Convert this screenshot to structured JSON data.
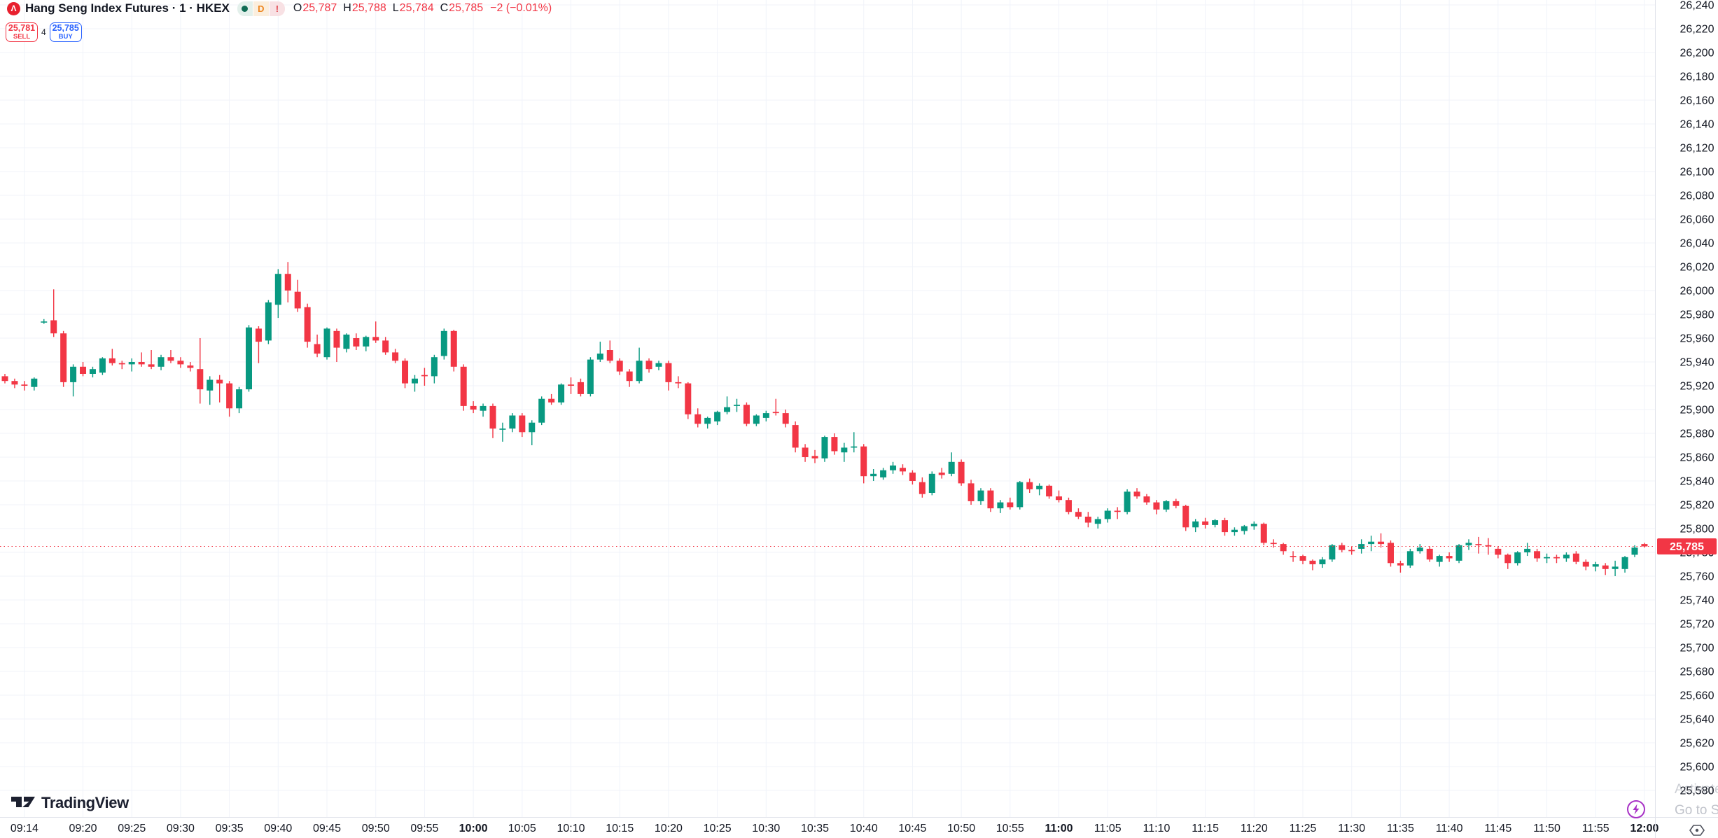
{
  "header": {
    "logo_glyph": "Λ",
    "symbol_title": "Hang Seng Index Futures · 1 · HKEX",
    "chips": {
      "d_label": "D",
      "alert_label": "!"
    },
    "ohlc": {
      "o_label": "O",
      "o": "25,787",
      "h_label": "H",
      "h": "25,788",
      "l_label": "L",
      "l": "25,784",
      "c_label": "C",
      "c": "25,785",
      "change": "−2 (−0.01%)"
    }
  },
  "order_panel": {
    "sell_price": "25,781",
    "sell_label": "SELL",
    "spread": "4",
    "buy_price": "25,785",
    "buy_label": "BUY"
  },
  "branding": {
    "logo_text": "TradingView"
  },
  "watermark": {
    "line1": "Activate W",
    "line2": "Go to S"
  },
  "colors": {
    "up": "#089981",
    "down": "#F23645",
    "buy_blue": "#2962FF",
    "sell_red": "#F23645",
    "grid": "#F0F3FA",
    "axis_text": "#131722",
    "axis_border": "#E0E3EB",
    "logo_red": "#E8202E",
    "chip_dot_green": "#0F6C54",
    "chip_d_orange": "#EE8722",
    "chip_alert_red": "#E0454F",
    "lightning_purple": "#A832C6",
    "icon_gray": "#50535E"
  },
  "price_axis": {
    "labels": [
      "26,240",
      "26,220",
      "26,200",
      "26,180",
      "26,160",
      "26,140",
      "26,120",
      "26,100",
      "26,080",
      "26,060",
      "26,040",
      "26,020",
      "26,000",
      "25,980",
      "25,960",
      "25,940",
      "25,920",
      "25,900",
      "25,880",
      "25,860",
      "25,840",
      "25,820",
      "25,800",
      "25,780",
      "25,760",
      "25,740",
      "25,720",
      "25,700",
      "25,680",
      "25,660",
      "25,640",
      "25,620",
      "25,600",
      "25,580"
    ],
    "last_price_label": "25,785"
  },
  "time_axis": {
    "labels": [
      {
        "t": "09:14",
        "bold": false
      },
      {
        "t": "09:20",
        "bold": false
      },
      {
        "t": "09:25",
        "bold": false
      },
      {
        "t": "09:30",
        "bold": false
      },
      {
        "t": "09:35",
        "bold": false
      },
      {
        "t": "09:40",
        "bold": false
      },
      {
        "t": "09:45",
        "bold": false
      },
      {
        "t": "09:50",
        "bold": false
      },
      {
        "t": "09:55",
        "bold": false
      },
      {
        "t": "10:00",
        "bold": true
      },
      {
        "t": "10:05",
        "bold": false
      },
      {
        "t": "10:10",
        "bold": false
      },
      {
        "t": "10:15",
        "bold": false
      },
      {
        "t": "10:20",
        "bold": false
      },
      {
        "t": "10:25",
        "bold": false
      },
      {
        "t": "10:30",
        "bold": false
      },
      {
        "t": "10:35",
        "bold": false
      },
      {
        "t": "10:40",
        "bold": false
      },
      {
        "t": "10:45",
        "bold": false
      },
      {
        "t": "10:50",
        "bold": false
      },
      {
        "t": "10:55",
        "bold": false
      },
      {
        "t": "11:00",
        "bold": true
      },
      {
        "t": "11:05",
        "bold": false
      },
      {
        "t": "11:10",
        "bold": false
      },
      {
        "t": "11:15",
        "bold": false
      },
      {
        "t": "11:20",
        "bold": false
      },
      {
        "t": "11:25",
        "bold": false
      },
      {
        "t": "11:30",
        "bold": false
      },
      {
        "t": "11:35",
        "bold": false
      },
      {
        "t": "11:40",
        "bold": false
      },
      {
        "t": "11:45",
        "bold": false
      },
      {
        "t": "11:50",
        "bold": false
      },
      {
        "t": "11:55",
        "bold": false
      },
      {
        "t": "12:00",
        "bold": true
      }
    ]
  },
  "chart_data": {
    "type": "candlestick",
    "title": "Hang Seng Index Futures, 1-minute, HKEX",
    "interval_minutes": 1,
    "first_candle_time": "09:12",
    "ylim": [
      25580,
      26240
    ],
    "price_line": 25785,
    "legend_position": "none",
    "grid": true,
    "candles": [
      [
        25928,
        25930,
        25922,
        25924
      ],
      [
        25924,
        25926,
        25918,
        25921
      ],
      [
        25921,
        25924,
        25916,
        25920
      ],
      [
        25919,
        25927,
        25916,
        25926
      ],
      [
        25974,
        25976,
        25972,
        25974
      ],
      [
        25975,
        26001,
        25961,
        25964
      ],
      [
        25964,
        25966,
        25919,
        25923
      ],
      [
        25923,
        25938,
        25911,
        25936
      ],
      [
        25936,
        25940,
        25928,
        25930
      ],
      [
        25930,
        25936,
        25927,
        25934
      ],
      [
        25931,
        25944,
        25929,
        25943
      ],
      [
        25943,
        25951,
        25937,
        25939
      ],
      [
        25939,
        25941,
        25934,
        25938
      ],
      [
        25938,
        25943,
        25932,
        25940
      ],
      [
        25940,
        25948,
        25936,
        25938
      ],
      [
        25938,
        25950,
        25934,
        25936
      ],
      [
        25936,
        25946,
        25933,
        25944
      ],
      [
        25944,
        25950,
        25939,
        25941
      ],
      [
        25941,
        25944,
        25935,
        25938
      ],
      [
        25937,
        25940,
        25932,
        25935
      ],
      [
        25934,
        25960,
        25905,
        25917
      ],
      [
        25916,
        25928,
        25904,
        25925
      ],
      [
        25925,
        25929,
        25906,
        25922
      ],
      [
        25922,
        25924,
        25894,
        25901
      ],
      [
        25901,
        25919,
        25897,
        25917
      ],
      [
        25917,
        25971,
        25915,
        25969
      ],
      [
        25968,
        25970,
        25939,
        25957
      ],
      [
        25958,
        25992,
        25955,
        25990
      ],
      [
        25988,
        26018,
        25977,
        26014
      ],
      [
        26014,
        26024,
        25990,
        26000
      ],
      [
        25999,
        26009,
        25982,
        25985
      ],
      [
        25986,
        25989,
        25952,
        25957
      ],
      [
        25955,
        25963,
        25944,
        25947
      ],
      [
        25944,
        25969,
        25942,
        25968
      ],
      [
        25966,
        25968,
        25940,
        25952
      ],
      [
        25951,
        25964,
        25948,
        25963
      ],
      [
        25960,
        25964,
        25950,
        25953
      ],
      [
        25953,
        25962,
        25949,
        25961
      ],
      [
        25961,
        25974,
        25956,
        25958
      ],
      [
        25958,
        25961,
        25946,
        25948
      ],
      [
        25948,
        25951,
        25939,
        25941
      ],
      [
        25941,
        25943,
        25918,
        25922
      ],
      [
        25922,
        25929,
        25915,
        25926
      ],
      [
        25929,
        25935,
        25920,
        25928
      ],
      [
        25928,
        25946,
        25922,
        25944
      ],
      [
        25945,
        25968,
        25942,
        25966
      ],
      [
        25966,
        25967,
        25932,
        25936
      ],
      [
        25936,
        25938,
        25899,
        25903
      ],
      [
        25903,
        25907,
        25897,
        25900
      ],
      [
        25899,
        25905,
        25894,
        25903
      ],
      [
        25903,
        25905,
        25876,
        25884
      ],
      [
        25884,
        25889,
        25873,
        25884
      ],
      [
        25884,
        25897,
        25881,
        25895
      ],
      [
        25895,
        25897,
        25877,
        25881
      ],
      [
        25881,
        25891,
        25870,
        25889
      ],
      [
        25889,
        25911,
        25887,
        25909
      ],
      [
        25909,
        25913,
        25904,
        25906
      ],
      [
        25906,
        25922,
        25904,
        25921
      ],
      [
        25921,
        25927,
        25913,
        25920
      ],
      [
        25923,
        25926,
        25911,
        25913
      ],
      [
        25913,
        25944,
        25911,
        25942
      ],
      [
        25942,
        25957,
        25940,
        25947
      ],
      [
        25950,
        25958,
        25939,
        25941
      ],
      [
        25941,
        25943,
        25929,
        25932
      ],
      [
        25932,
        25934,
        25919,
        25924
      ],
      [
        25924,
        25952,
        25922,
        25941
      ],
      [
        25941,
        25943,
        25931,
        25934
      ],
      [
        25936,
        25941,
        25933,
        25939
      ],
      [
        25939,
        25941,
        25916,
        25923
      ],
      [
        25923,
        25928,
        25918,
        25922
      ],
      [
        25922,
        25923,
        25892,
        25896
      ],
      [
        25896,
        25901,
        25885,
        25888
      ],
      [
        25888,
        25894,
        25884,
        25893
      ],
      [
        25890,
        25899,
        25887,
        25898
      ],
      [
        25898,
        25911,
        25896,
        25902
      ],
      [
        25903,
        25909,
        25898,
        25904
      ],
      [
        25904,
        25906,
        25886,
        25888
      ],
      [
        25888,
        25896,
        25886,
        25895
      ],
      [
        25893,
        25899,
        25890,
        25897
      ],
      [
        25898,
        25909,
        25895,
        25897
      ],
      [
        25897,
        25900,
        25885,
        25888
      ],
      [
        25887,
        25890,
        25864,
        25868
      ],
      [
        25868,
        25871,
        25856,
        25860
      ],
      [
        25861,
        25866,
        25855,
        25859
      ],
      [
        25859,
        25878,
        25856,
        25877
      ],
      [
        25877,
        25880,
        25862,
        25865
      ],
      [
        25864,
        25872,
        25856,
        25868
      ],
      [
        25868,
        25881,
        25864,
        25869
      ],
      [
        25869,
        25871,
        25838,
        25844
      ],
      [
        25844,
        25850,
        25840,
        25846
      ],
      [
        25843,
        25851,
        25841,
        25849
      ],
      [
        25849,
        25856,
        25846,
        25853
      ],
      [
        25851,
        25854,
        25845,
        25848
      ],
      [
        25847,
        25849,
        25837,
        25840
      ],
      [
        25839,
        25843,
        25826,
        25829
      ],
      [
        25830,
        25848,
        25828,
        25846
      ],
      [
        25847,
        25851,
        25842,
        25845
      ],
      [
        25846,
        25864,
        25844,
        25856
      ],
      [
        25856,
        25858,
        25836,
        25838
      ],
      [
        25838,
        25841,
        25820,
        25823
      ],
      [
        25823,
        25834,
        25820,
        25832
      ],
      [
        25832,
        25834,
        25814,
        25817
      ],
      [
        25817,
        25824,
        25813,
        25822
      ],
      [
        25822,
        25826,
        25816,
        25818
      ],
      [
        25818,
        25840,
        25816,
        25839
      ],
      [
        25839,
        25842,
        25830,
        25833
      ],
      [
        25833,
        25838,
        25828,
        25836
      ],
      [
        25836,
        25837,
        25825,
        25827
      ],
      [
        25827,
        25832,
        25822,
        25824
      ],
      [
        25824,
        25826,
        25812,
        25814
      ],
      [
        25814,
        25817,
        25808,
        25810
      ],
      [
        25810,
        25814,
        25801,
        25805
      ],
      [
        25804,
        25810,
        25800,
        25808
      ],
      [
        25808,
        25817,
        25805,
        25815
      ],
      [
        25815,
        25818,
        25808,
        25814
      ],
      [
        25814,
        25833,
        25812,
        25831
      ],
      [
        25831,
        25834,
        25825,
        25827
      ],
      [
        25827,
        25829,
        25820,
        25822
      ],
      [
        25822,
        25824,
        25812,
        25816
      ],
      [
        25816,
        25824,
        25814,
        25823
      ],
      [
        25823,
        25825,
        25817,
        25819
      ],
      [
        25819,
        25820,
        25798,
        25801
      ],
      [
        25801,
        25808,
        25797,
        25806
      ],
      [
        25806,
        25809,
        25800,
        25803
      ],
      [
        25803,
        25808,
        25801,
        25807
      ],
      [
        25807,
        25809,
        25794,
        25797
      ],
      [
        25797,
        25801,
        25794,
        25799
      ],
      [
        25798,
        25803,
        25795,
        25802
      ],
      [
        25802,
        25806,
        25799,
        25804
      ],
      [
        25804,
        25805,
        25786,
        25788
      ],
      [
        25788,
        25791,
        25784,
        25787
      ],
      [
        25787,
        25788,
        25778,
        25781
      ],
      [
        25777,
        25781,
        25772,
        25776
      ],
      [
        25777,
        25778,
        25770,
        25773
      ],
      [
        25773,
        25774,
        25765,
        25770
      ],
      [
        25770,
        25776,
        25767,
        25774
      ],
      [
        25774,
        25787,
        25772,
        25786
      ],
      [
        25786,
        25788,
        25780,
        25782
      ],
      [
        25782,
        25785,
        25778,
        25781
      ],
      [
        25783,
        25791,
        25779,
        25787
      ],
      [
        25787,
        25794,
        25781,
        25789
      ],
      [
        25789,
        25796,
        25784,
        25787
      ],
      [
        25788,
        25790,
        25768,
        25771
      ],
      [
        25771,
        25773,
        25763,
        25769
      ],
      [
        25769,
        25783,
        25767,
        25781
      ],
      [
        25781,
        25787,
        25779,
        25784
      ],
      [
        25783,
        25785,
        25772,
        25774
      ],
      [
        25772,
        25778,
        25768,
        25777
      ],
      [
        25777,
        25780,
        25772,
        25775
      ],
      [
        25773,
        25787,
        25771,
        25786
      ],
      [
        25786,
        25791,
        25782,
        25788
      ],
      [
        25787,
        25793,
        25779,
        25786
      ],
      [
        25786,
        25792,
        25778,
        25785
      ],
      [
        25783,
        25785,
        25775,
        25778
      ],
      [
        25778,
        25779,
        25766,
        25771
      ],
      [
        25771,
        25781,
        25769,
        25780
      ],
      [
        25780,
        25788,
        25777,
        25783
      ],
      [
        25781,
        25783,
        25772,
        25775
      ],
      [
        25775,
        25779,
        25771,
        25776
      ],
      [
        25776,
        25778,
        25771,
        25775
      ],
      [
        25775,
        25780,
        25772,
        25778
      ],
      [
        25779,
        25781,
        25770,
        25772
      ],
      [
        25772,
        25774,
        25765,
        25768
      ],
      [
        25768,
        25772,
        25764,
        25770
      ],
      [
        25769,
        25771,
        25761,
        25766
      ],
      [
        25766,
        25773,
        25760,
        25768
      ],
      [
        25766,
        25777,
        25763,
        25776
      ],
      [
        25778,
        25786,
        25776,
        25784
      ],
      [
        25787,
        25788,
        25784,
        25785
      ]
    ]
  }
}
